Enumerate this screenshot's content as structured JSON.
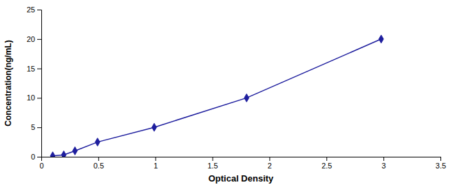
{
  "chart_data": {
    "type": "line",
    "x": [
      0.1,
      0.197,
      0.295,
      0.493,
      0.99,
      1.8,
      2.98
    ],
    "values": [
      0.156,
      0.312,
      1.0,
      2.5,
      5.0,
      10.0,
      20.0
    ],
    "color": "#1e1e9e",
    "marker": "diamond",
    "xlabel": "Optical Density",
    "ylabel": "Concentration(ng/mL)",
    "xlim": [
      0,
      3.5
    ],
    "ylim": [
      0,
      25
    ],
    "xticks": [
      0,
      0.5,
      1,
      1.5,
      2,
      2.5,
      3,
      3.5
    ],
    "yticks": [
      0,
      5,
      10,
      15,
      20,
      25
    ]
  }
}
